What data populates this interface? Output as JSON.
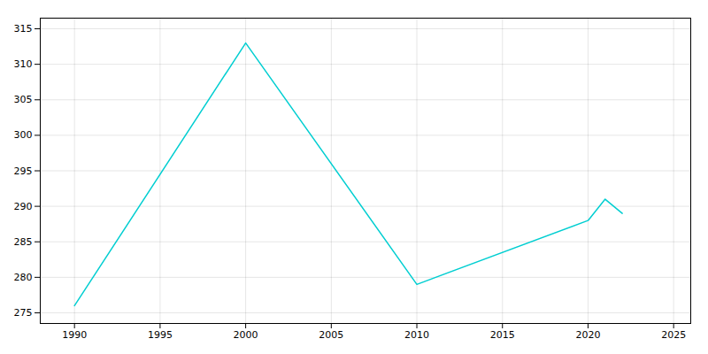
{
  "chart_data": {
    "type": "line",
    "x": [
      1990,
      2000,
      2010,
      2020,
      2021,
      2022
    ],
    "values": [
      276,
      313,
      279,
      288,
      291,
      289
    ],
    "color": "#00CED1",
    "xlim": [
      1988,
      2026
    ],
    "ylim": [
      273.5,
      316.5
    ],
    "xticks": [
      1990,
      1995,
      2000,
      2005,
      2010,
      2015,
      2020,
      2025
    ],
    "yticks": [
      275,
      280,
      285,
      290,
      295,
      300,
      305,
      310,
      315
    ],
    "grid": true
  }
}
